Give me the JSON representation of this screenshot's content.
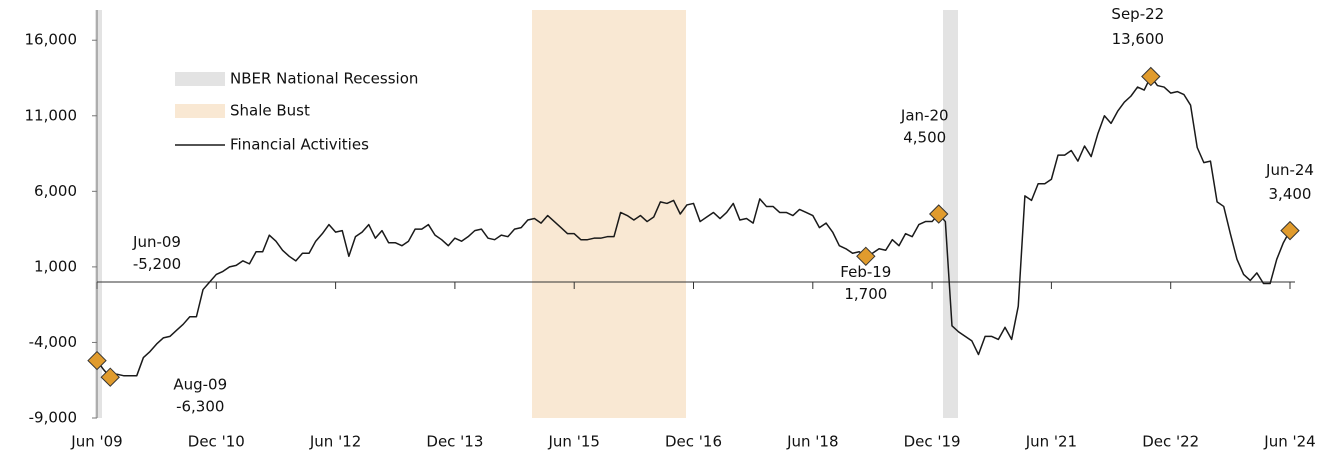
{
  "chart_data": {
    "type": "line",
    "categories": [
      "Jun '09",
      null,
      null,
      null,
      null,
      null,
      null,
      null,
      null,
      null,
      null,
      null,
      null,
      null,
      null,
      null,
      null,
      null,
      "Dec '10",
      null,
      null,
      null,
      null,
      null,
      null,
      null,
      null,
      null,
      null,
      null,
      null,
      null,
      null,
      null,
      null,
      null,
      "Jun '12",
      null,
      null,
      null,
      null,
      null,
      null,
      null,
      null,
      null,
      null,
      null,
      null,
      null,
      null,
      null,
      null,
      null,
      "Dec '13",
      null,
      null,
      null,
      null,
      null,
      null,
      null,
      null,
      null,
      null,
      null,
      null,
      null,
      null,
      null,
      null,
      null,
      "Jun '15",
      null,
      null,
      null,
      null,
      null,
      null,
      null,
      null,
      null,
      null,
      null,
      null,
      null,
      null,
      null,
      null,
      null,
      "Dec '16",
      null,
      null,
      null,
      null,
      null,
      null,
      null,
      null,
      null,
      null,
      null,
      null,
      null,
      null,
      null,
      null,
      null,
      "Jun '18",
      null,
      null,
      null,
      null,
      null,
      null,
      null,
      null,
      null,
      null,
      null,
      null,
      null,
      null,
      null,
      null,
      null,
      "Dec '19",
      null,
      null,
      null,
      null,
      null,
      null,
      null,
      null,
      null,
      null,
      null,
      null,
      null,
      null,
      null,
      null,
      null,
      "Jun '21",
      null,
      null,
      null,
      null,
      null,
      null,
      null,
      null,
      null,
      null,
      null,
      null,
      null,
      null,
      null,
      null,
      null,
      "Dec '22",
      null,
      null,
      null,
      null,
      null,
      null,
      null,
      null,
      null,
      null,
      null,
      null,
      null,
      null,
      null,
      null,
      null,
      "Jun '24"
    ],
    "series": [
      {
        "name": "Financial Activities",
        "color": "#1a1a1a",
        "values": [
          -5200,
          -5800,
          -6300,
          -6100,
          -6200,
          -6200,
          -6200,
          -5000,
          -4600,
          -4100,
          -3700,
          -3600,
          -3200,
          -2800,
          -2300,
          -2300,
          -500,
          0,
          500,
          700,
          1000,
          1100,
          1400,
          1200,
          2000,
          2000,
          3100,
          2700,
          2100,
          1700,
          1400,
          1900,
          1900,
          2700,
          3200,
          3800,
          3300,
          3400,
          1700,
          3000,
          3300,
          3800,
          2900,
          3400,
          2600,
          2600,
          2400,
          2700,
          3500,
          3500,
          3800,
          3100,
          2800,
          2400,
          2900,
          2700,
          3000,
          3400,
          3500,
          2900,
          2800,
          3100,
          3000,
          3500,
          3600,
          4100,
          4200,
          3900,
          4400,
          4000,
          3600,
          3200,
          3200,
          2800,
          2800,
          2900,
          2900,
          3000,
          3000,
          4600,
          4400,
          4100,
          4400,
          4000,
          4300,
          5300,
          5200,
          5400,
          4500,
          5100,
          5200,
          4000,
          4300,
          4600,
          4200,
          4600,
          5200,
          4100,
          4200,
          3900,
          5500,
          5000,
          5000,
          4600,
          4600,
          4400,
          4800,
          4600,
          4400,
          3600,
          3900,
          3300,
          2400,
          2200,
          1900,
          2000,
          1700,
          1900,
          2200,
          2100,
          2800,
          2400,
          3200,
          3000,
          3800,
          4000,
          4000,
          4500,
          4000,
          -2900,
          -3300,
          -3600,
          -3900,
          -4800,
          -3600,
          -3600,
          -3800,
          -3000,
          -3800,
          -1600,
          5700,
          5400,
          6500,
          6500,
          6800,
          8400,
          8400,
          8700,
          8000,
          9000,
          8300,
          9800,
          11000,
          10500,
          11300,
          11900,
          12300,
          12900,
          12700,
          13600,
          13000,
          12900,
          12500,
          12600,
          12400,
          11700,
          8900,
          7900,
          8000,
          5300,
          5000,
          3200,
          1500,
          500,
          100,
          600,
          -100,
          -100,
          1500,
          2600,
          3400
        ]
      }
    ],
    "legend": [
      "NBER National Recession",
      "Shale Bust",
      "Financial Activities"
    ],
    "annotations": [
      {
        "label": "Jun-09",
        "value": -5200,
        "value_label": "-5,200"
      },
      {
        "label": "Aug-09",
        "value": -6300,
        "value_label": "-6,300"
      },
      {
        "label": "Feb-19",
        "value": 1700,
        "value_label": "1,700"
      },
      {
        "label": "Jan-20",
        "value": 4500,
        "value_label": "4,500"
      },
      {
        "label": "Sep-22",
        "value": 13600,
        "value_label": "13,600"
      },
      {
        "label": "Jun-24",
        "value": 3400,
        "value_label": "3,400"
      }
    ],
    "marker_color": "#e09b2d",
    "ylim": [
      -9000,
      18000
    ],
    "yticks": [
      {
        "value": -9000,
        "label": "-9,000"
      },
      {
        "value": -4000,
        "label": "-4,000"
      },
      {
        "value": 1000,
        "label": "1,000"
      },
      {
        "value": 6000,
        "label": "6,000"
      },
      {
        "value": 11000,
        "label": "11,000"
      },
      {
        "value": 16000,
        "label": "16,000"
      }
    ]
  }
}
